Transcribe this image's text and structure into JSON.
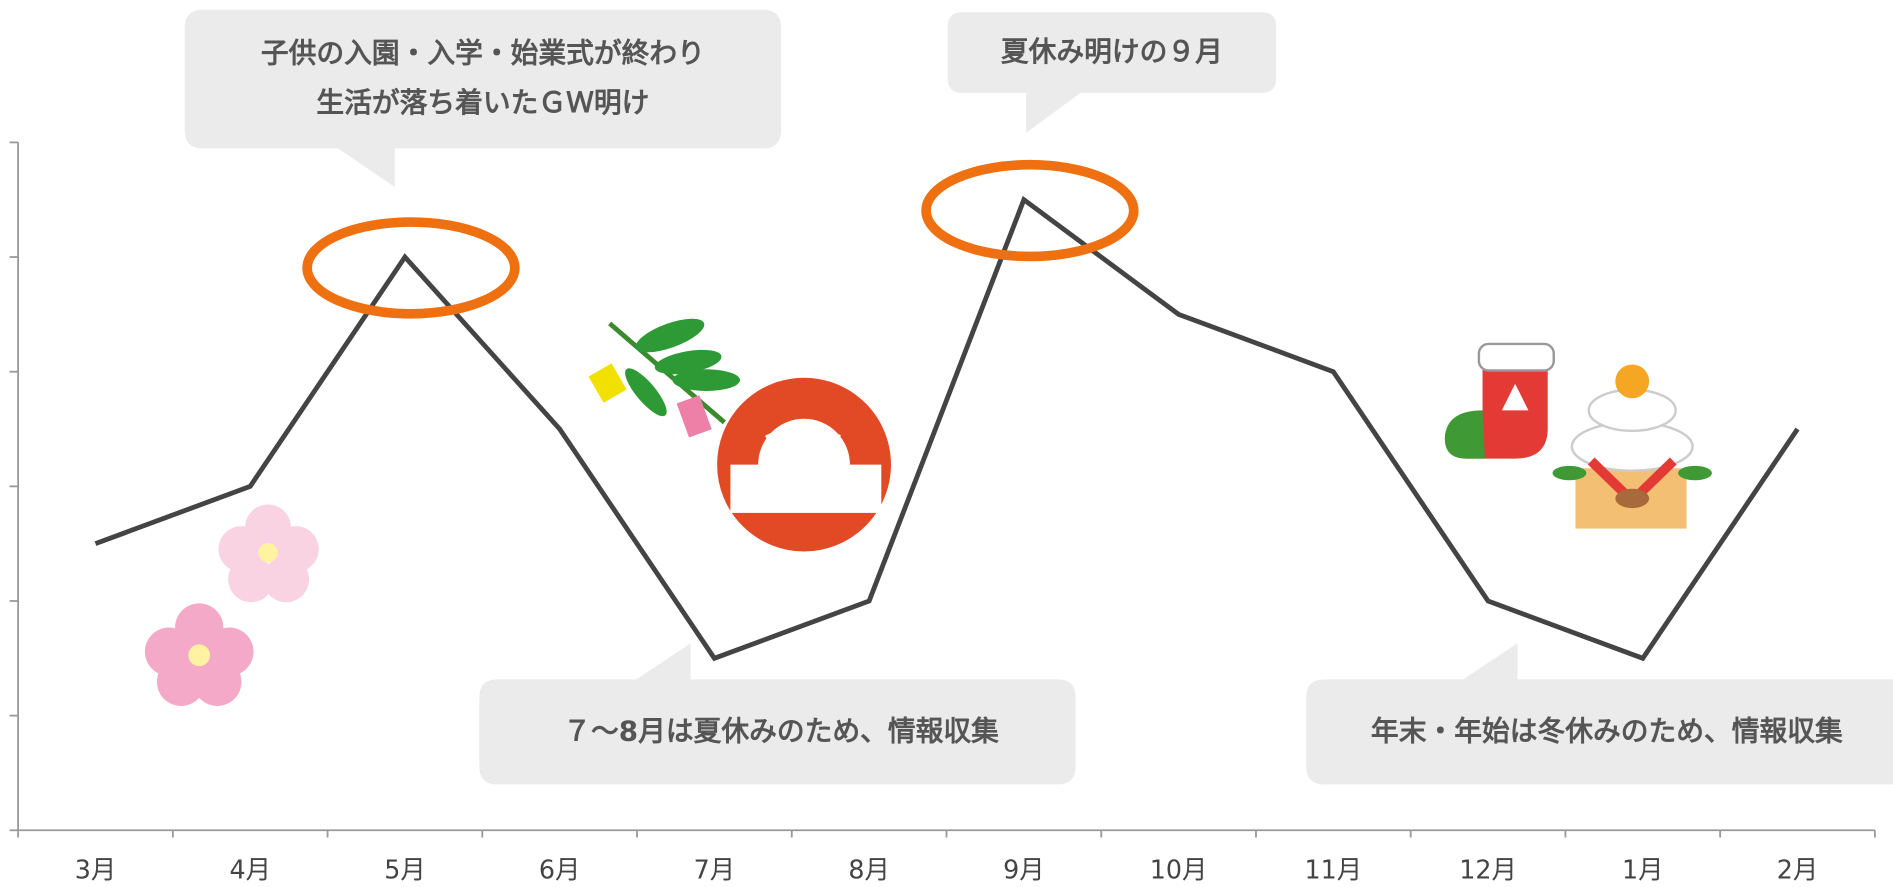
{
  "chart_data": {
    "type": "line",
    "categories": [
      "3月",
      "4月",
      "5月",
      "6月",
      "7月",
      "8月",
      "9月",
      "10月",
      "11月",
      "12月",
      "1月",
      "2月"
    ],
    "values": [
      2.5,
      3,
      5,
      3.5,
      1.5,
      2,
      5.5,
      4.5,
      4,
      2,
      1.5,
      3.5
    ],
    "color": "#444444",
    "ylim": [
      0,
      6
    ],
    "yticks": [
      0,
      1,
      2,
      3,
      4,
      5,
      6
    ],
    "highlight_indices": [
      2,
      6
    ],
    "highlight_color": "#ef7010",
    "annotations": [
      {
        "lines": [
          "子供の入園・入学・始業式が終わり",
          "生活が落ち着いたＧＷ明け"
        ]
      },
      {
        "lines": [
          "夏休み明けの９月"
        ]
      },
      {
        "lines": [
          "７～8月は夏休みのため、情報収集"
        ]
      },
      {
        "lines": [
          "年末・年始は冬休みのため、情報収集"
        ]
      }
    ]
  }
}
